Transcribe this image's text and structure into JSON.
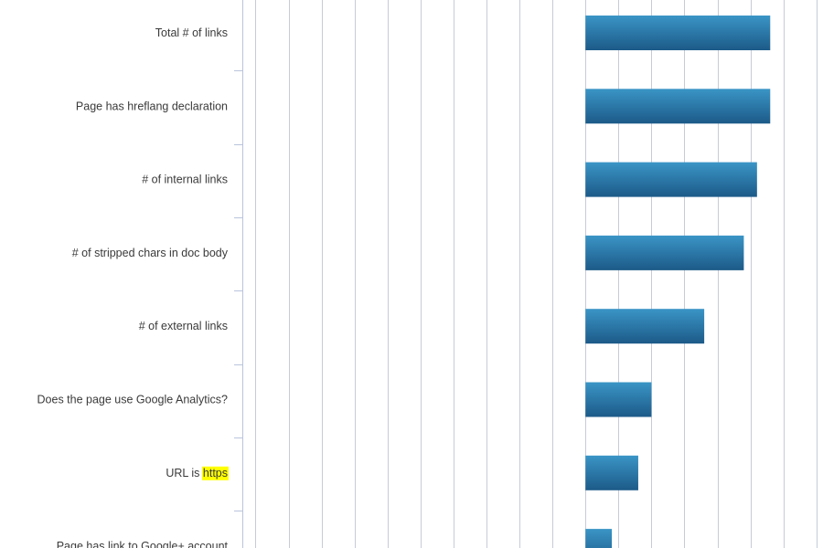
{
  "chart_data": {
    "type": "bar",
    "orientation": "horizontal",
    "title": "",
    "xlabel": "",
    "ylabel": "",
    "xlim": [
      -0.26,
      0.18
    ],
    "x_gridline_step": 0.025,
    "bar_baseline": 0,
    "grid": true,
    "highlight": {
      "category_index": 6,
      "word": "https",
      "color": "#ffff00"
    },
    "categories": [
      "Total # of links",
      "Page has hreflang declaration",
      "# of internal links",
      "# of stripped chars in doc body",
      "# of external links",
      "Does the page use Google Analytics?",
      "URL is https",
      "Page has link to Google+ account"
    ],
    "values": [
      0.14,
      0.14,
      0.13,
      0.12,
      0.09,
      0.05,
      0.04,
      0.02
    ],
    "colors": {
      "bar_top": "#3a95c6",
      "bar_bottom": "#1c5a88",
      "grid": "#c5cbd8",
      "axis": "#b9c4dc",
      "text": "#3a3a3a"
    }
  }
}
